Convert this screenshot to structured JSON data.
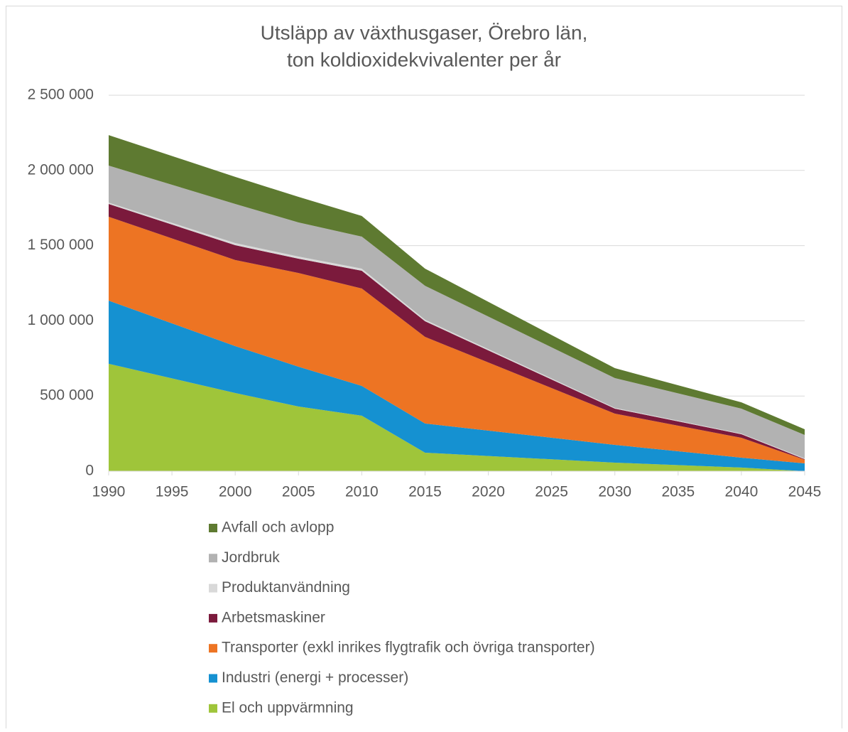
{
  "chart_data": {
    "type": "stacked_area",
    "title": [
      "Utsläpp av växthusgaser, Örebro län,",
      "ton koldioxidekvivalenter per år"
    ],
    "x": [
      1990,
      2000,
      2005,
      2010,
      2015,
      2030,
      2040,
      2045
    ],
    "xlim": [
      1990,
      2045
    ],
    "xticks": [
      1990,
      1995,
      2000,
      2005,
      2010,
      2015,
      2020,
      2025,
      2030,
      2035,
      2040,
      2045
    ],
    "ylim": [
      0,
      2500000
    ],
    "yticks": [
      0,
      {
        "value": 500000,
        "label": "500 000"
      },
      {
        "value": 1000000,
        "label": "1 000 000"
      },
      {
        "value": 1500000,
        "label": "1 500 000"
      },
      {
        "value": 2000000,
        "label": "2 000 000"
      },
      {
        "value": 2500000,
        "label": "2 500 000"
      }
    ],
    "grid": true,
    "legend": "bottom",
    "series": [
      {
        "name": "El och uppvärmning",
        "color": "#9fc53a",
        "values": [
          714000,
          520000,
          430000,
          369000,
          123000,
          57000,
          24000,
          0
        ]
      },
      {
        "name": "Industri (energi + processer)",
        "color": "#1591d1",
        "values": [
          420000,
          312000,
          265000,
          198000,
          194000,
          118000,
          66000,
          52000
        ]
      },
      {
        "name": "Transporter (exkl inrikes flygtrafik och övriga transporter)",
        "color": "#ed7423",
        "values": [
          558000,
          572000,
          623000,
          648000,
          576000,
          208000,
          132000,
          24000
        ]
      },
      {
        "name": "Arbetsmaskiner",
        "color": "#7b1a3c",
        "values": [
          85000,
          99000,
          95000,
          118000,
          104000,
          33000,
          24000,
          4000
        ]
      },
      {
        "name": "Produktanvändning",
        "color": "#d9d9d9",
        "values": [
          9000,
          14000,
          14000,
          14000,
          10000,
          5000,
          4000,
          5000
        ]
      },
      {
        "name": "Jordbruk",
        "color": "#b2b2b2",
        "values": [
          246000,
          260000,
          227000,
          213000,
          226000,
          198000,
          166000,
          156000
        ]
      },
      {
        "name": "Avfall och avlopp",
        "color": "#5e7a31",
        "values": [
          203000,
          180000,
          170000,
          137000,
          114000,
          66000,
          42000,
          38000
        ]
      }
    ]
  }
}
